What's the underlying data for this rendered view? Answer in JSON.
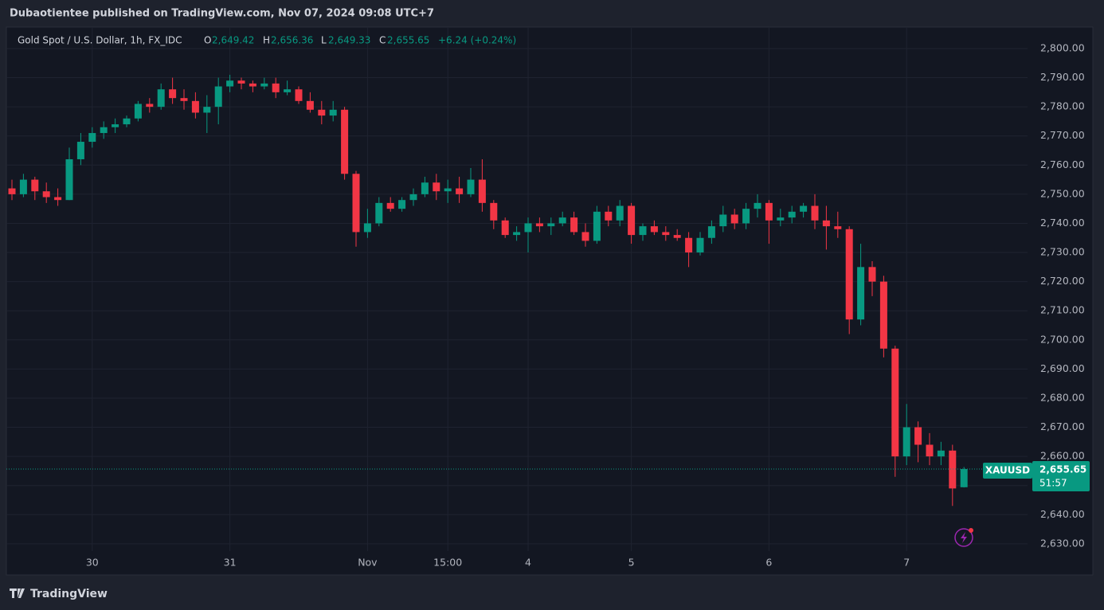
{
  "header": {
    "published": "Dubaotientee published on TradingView.com, Nov 07, 2024 09:08 UTC+7",
    "symbol": "Gold Spot / U.S. Dollar, 1h, FX_IDC",
    "open_key": "O",
    "open": "2,649.42",
    "high_key": "H",
    "high": "2,656.36",
    "low_key": "L",
    "low": "2,649.33",
    "close_key": "C",
    "close": "2,655.65",
    "change": "+6.24 (+0.24%)",
    "ticker": "XAUUSD",
    "last_price": "2,655.65",
    "countdown": "51:57"
  },
  "footer": {
    "brand": "TradingView"
  },
  "chart_data": {
    "type": "candlestick",
    "up_color": "#089981",
    "down_color": "#f23645",
    "grid": true,
    "categories": [
      null,
      null,
      null,
      null,
      null,
      null,
      null,
      "30",
      null,
      null,
      null,
      null,
      null,
      null,
      null,
      null,
      null,
      null,
      null,
      "31",
      null,
      null,
      null,
      null,
      null,
      null,
      null,
      null,
      null,
      null,
      null,
      "Nov",
      null,
      null,
      null,
      null,
      null,
      null,
      "15:00",
      null,
      null,
      null,
      null,
      null,
      null,
      "4",
      null,
      null,
      null,
      null,
      null,
      null,
      null,
      null,
      "5",
      null,
      null,
      null,
      null,
      null,
      null,
      null,
      null,
      null,
      null,
      null,
      "6",
      null,
      null,
      null,
      null,
      null,
      null,
      null,
      null,
      null,
      null,
      null,
      "7",
      null,
      null,
      null,
      null,
      null
    ],
    "open": [
      2752,
      2750,
      2755,
      2751,
      2749,
      2748,
      2762,
      2768,
      2771,
      2773,
      2774,
      2776,
      2781,
      2780,
      2786,
      2783,
      2782,
      2778,
      2780,
      2787,
      2789,
      2788,
      2787,
      2788,
      2785,
      2786,
      2782,
      2779,
      2777,
      2779,
      2757,
      2737,
      2740,
      2747,
      2745,
      2748,
      2750,
      2754,
      2751,
      2752,
      2750,
      2755,
      2747,
      2741,
      2736,
      2737,
      2740,
      2739,
      2740,
      2742,
      2737,
      2734,
      2744,
      2741,
      2746,
      2736,
      2739,
      2737,
      2736,
      2735,
      2730,
      2735,
      2739,
      2743,
      2740,
      2745,
      2747,
      2741,
      2742,
      2744,
      2746,
      2741,
      2739,
      2738,
      2707,
      2725,
      2720,
      2697,
      2660,
      2670,
      2664,
      2660,
      2662,
      2649.42
    ],
    "high": [
      2755,
      2757,
      2756,
      2754,
      2752,
      2766,
      2771,
      2773,
      2775,
      2776,
      2777,
      2782,
      2783,
      2788,
      2790,
      2786,
      2785,
      2784,
      2790,
      2791,
      2790,
      2789,
      2790,
      2790,
      2789,
      2787,
      2785,
      2782,
      2782,
      2780,
      2758,
      2745,
      2749,
      2749,
      2749,
      2752,
      2756,
      2757,
      2755,
      2756,
      2759,
      2762,
      2748,
      2742,
      2739,
      2742,
      2742,
      2742,
      2744,
      2744,
      2740,
      2746,
      2746,
      2748,
      2747,
      2740,
      2741,
      2739,
      2738,
      2737,
      2737,
      2741,
      2746,
      2745,
      2747,
      2750,
      2748,
      2745,
      2746,
      2747,
      2750,
      2746,
      2744,
      2739,
      2733,
      2727,
      2722,
      2698,
      2678,
      2672,
      2668,
      2665,
      2664,
      2656.36
    ],
    "low": [
      2748,
      2749,
      2748,
      2747,
      2746,
      2748,
      2760,
      2766,
      2769,
      2771,
      2773,
      2775,
      2778,
      2779,
      2781,
      2779,
      2776,
      2771,
      2774,
      2785,
      2786,
      2785,
      2786,
      2783,
      2784,
      2781,
      2778,
      2774,
      2775,
      2755,
      2732,
      2735,
      2739,
      2744,
      2744,
      2746,
      2749,
      2748,
      2747,
      2747,
      2749,
      2744,
      2738,
      2735,
      2734,
      2730,
      2737,
      2736,
      2739,
      2736,
      2732,
      2733,
      2739,
      2739,
      2733,
      2734,
      2736,
      2734,
      2734,
      2725,
      2729,
      2733,
      2737,
      2738,
      2738,
      2742,
      2733,
      2739,
      2740,
      2742,
      2738,
      2731,
      2735,
      2702,
      2705,
      2715,
      2694,
      2653,
      2657,
      2658,
      2657,
      2657,
      2643,
      2649.33
    ],
    "close": [
      2750,
      2755,
      2751,
      2749,
      2748,
      2762,
      2768,
      2771,
      2773,
      2774,
      2776,
      2781,
      2780,
      2786,
      2783,
      2782,
      2778,
      2780,
      2787,
      2789,
      2788,
      2787,
      2788,
      2785,
      2786,
      2782,
      2779,
      2777,
      2779,
      2757,
      2737,
      2740,
      2747,
      2745,
      2748,
      2750,
      2754,
      2751,
      2752,
      2750,
      2755,
      2747,
      2741,
      2736,
      2737,
      2740,
      2739,
      2740,
      2742,
      2737,
      2734,
      2744,
      2741,
      2746,
      2736,
      2739,
      2737,
      2736,
      2735,
      2730,
      2735,
      2739,
      2743,
      2740,
      2745,
      2747,
      2741,
      2742,
      2744,
      2746,
      2741,
      2739,
      2738,
      2707,
      2725,
      2720,
      2697,
      2660,
      2670,
      2664,
      2660,
      2662,
      2649,
      2655.65
    ],
    "ylim": [
      2619.3,
      2807.1
    ],
    "yticks": [
      {
        "value": 2630,
        "label": "2,630.00"
      },
      {
        "value": 2640,
        "label": "2,640.00"
      },
      {
        "value": 2650,
        "label": "2,650.00"
      },
      {
        "value": 2660,
        "label": "2,660.00"
      },
      {
        "value": 2670,
        "label": "2,670.00"
      },
      {
        "value": 2680,
        "label": "2,680.00"
      },
      {
        "value": 2690,
        "label": "2,690.00"
      },
      {
        "value": 2700,
        "label": "2,700.00"
      },
      {
        "value": 2710,
        "label": "2,710.00"
      },
      {
        "value": 2720,
        "label": "2,720.00"
      },
      {
        "value": 2730,
        "label": "2,730.00"
      },
      {
        "value": 2740,
        "label": "2,740.00"
      },
      {
        "value": 2750,
        "label": "2,750.00"
      },
      {
        "value": 2760,
        "label": "2,760.00"
      },
      {
        "value": 2770,
        "label": "2,770.00"
      },
      {
        "value": 2780,
        "label": "2,780.00"
      },
      {
        "value": 2790,
        "label": "2,790.00"
      },
      {
        "value": 2800,
        "label": "2,800.00"
      }
    ]
  }
}
